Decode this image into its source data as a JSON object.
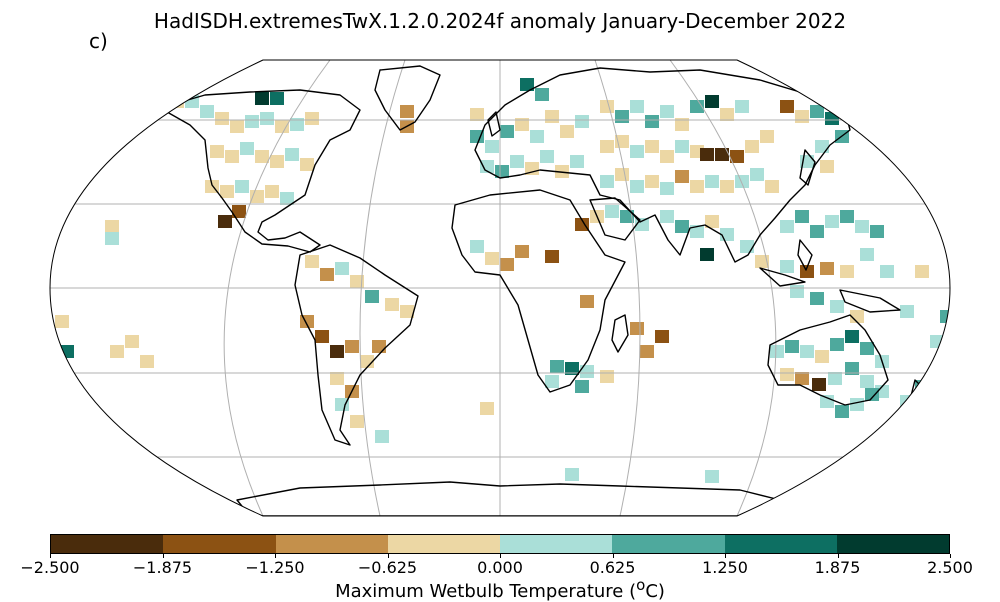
{
  "title": "HadISDH.extremesTwX.1.2.0.2024f anomaly January-December 2022",
  "panel_label": "c)",
  "projection": "Robinson",
  "colorbar": {
    "label": "Maximum Wetbulb Temperature (",
    "label_unit_super": "o",
    "label_end": "C)",
    "ticks": [
      "−2.500",
      "−1.875",
      "−1.250",
      "−0.625",
      "0.000",
      "0.625",
      "1.250",
      "1.875",
      "2.500"
    ],
    "colors": [
      "#4a2c0c",
      "#8c5213",
      "#c4904b",
      "#ecd7a4",
      "#aadfd8",
      "#4ea99d",
      "#0d6f62",
      "#013b2f"
    ]
  },
  "colors": {
    "land_outline": "#000000",
    "graticule": "#b0b0b0"
  }
}
